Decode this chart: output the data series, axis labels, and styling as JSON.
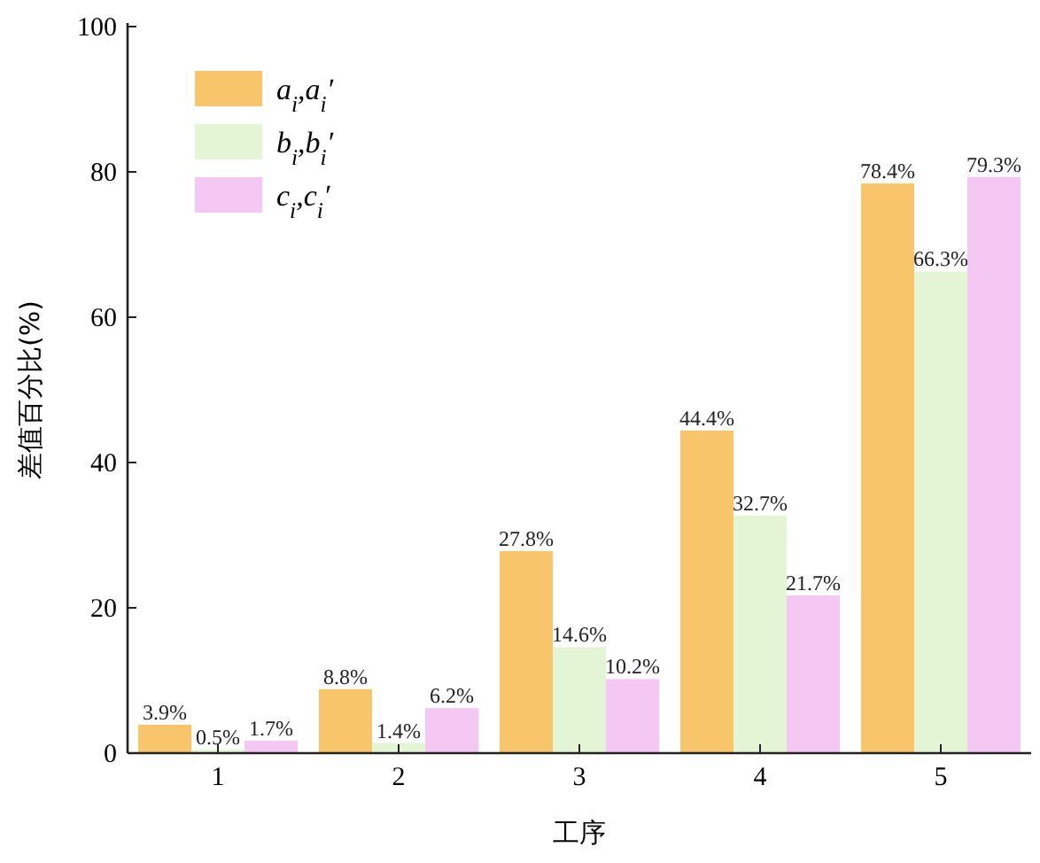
{
  "chart_data": {
    "type": "bar",
    "xlabel": "工序",
    "ylabel": "差值百分比(%)",
    "categories": [
      "1",
      "2",
      "3",
      "4",
      "5"
    ],
    "series": [
      {
        "name": "a$_{i}$,a$_{i}$′",
        "color": "#f9c56a",
        "values": [
          3.9,
          8.8,
          27.8,
          44.4,
          78.4
        ],
        "value_labels": [
          "3.9%",
          "8.8%",
          "27.8%",
          "44.4%",
          "78.4%"
        ]
      },
      {
        "name": "b$_{i}$,b$_{i}$′",
        "color": "#e4f5d6",
        "values": [
          0.5,
          1.4,
          14.6,
          32.7,
          66.3
        ],
        "value_labels": [
          "0.5%",
          "1.4%",
          "14.6%",
          "32.7%",
          "66.3%"
        ]
      },
      {
        "name": "c$_{i}$,c$_{i}$′",
        "color": "#f4c8f2",
        "values": [
          1.7,
          6.2,
          10.2,
          21.7,
          79.3
        ],
        "value_labels": [
          "1.7%",
          "6.2%",
          "10.2%",
          "21.7%",
          "79.3%"
        ]
      }
    ],
    "ylim": [
      0,
      100
    ],
    "yticks": [
      0,
      20,
      40,
      60,
      80,
      100
    ],
    "legend": "top left",
    "grid": false
  }
}
